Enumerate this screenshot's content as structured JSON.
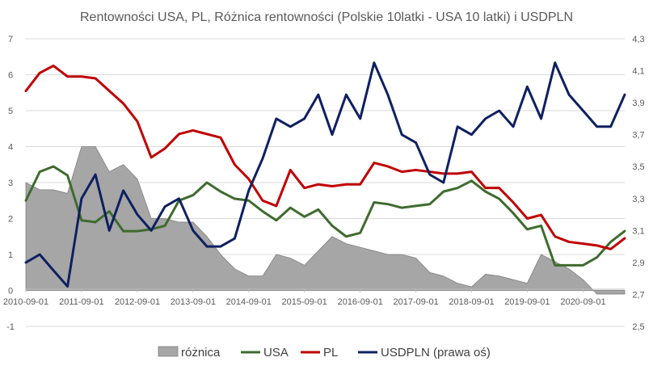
{
  "chart_data": {
    "type": "line",
    "title": "Rentowności USA, PL, Różnica rentowności (Polskie 10latki - USA 10 latki) i USDPLN",
    "x_tick_labels": [
      "2010-09-01",
      "2011-09-01",
      "2012-09-01",
      "2013-09-01",
      "2014-09-01",
      "2015-09-01",
      "2016-09-01",
      "2017-09-01",
      "2018-09-01",
      "2019-09-01",
      "2020-09-01"
    ],
    "x_start": "2010-09-01",
    "x_end": "2021-06-01",
    "y_left": {
      "min": -1,
      "max": 7,
      "ticks": [
        "-1",
        "0",
        "1",
        "2",
        "3",
        "4",
        "5",
        "6",
        "7"
      ]
    },
    "y_right": {
      "min": 2.5,
      "max": 4.3,
      "ticks": [
        "2,5",
        "2,7",
        "2,9",
        "3,1",
        "3,3",
        "3,5",
        "3,7",
        "3,9",
        "4,1",
        "4,3"
      ]
    },
    "legend_position": "bottom",
    "grid": true,
    "series": [
      {
        "name": "różnica",
        "kind": "area",
        "axis": "left",
        "color": "#a6a6a6",
        "x": [
          "2010-09-01",
          "2010-12-01",
          "2011-03-01",
          "2011-06-01",
          "2011-09-01",
          "2011-12-01",
          "2012-03-01",
          "2012-06-01",
          "2012-09-01",
          "2012-12-01",
          "2013-03-01",
          "2013-06-01",
          "2013-09-01",
          "2013-12-01",
          "2014-03-01",
          "2014-06-01",
          "2014-09-01",
          "2014-12-01",
          "2015-03-01",
          "2015-06-01",
          "2015-09-01",
          "2015-12-01",
          "2016-03-01",
          "2016-06-01",
          "2016-09-01",
          "2016-12-01",
          "2017-03-01",
          "2017-06-01",
          "2017-09-01",
          "2017-12-01",
          "2018-03-01",
          "2018-06-01",
          "2018-09-01",
          "2018-12-01",
          "2019-03-01",
          "2019-06-01",
          "2019-09-01",
          "2019-12-01",
          "2020-03-01",
          "2020-06-01",
          "2020-09-01",
          "2020-12-01",
          "2021-03-01",
          "2021-06-01"
        ],
        "values": [
          3.0,
          2.8,
          2.8,
          2.7,
          4.0,
          4.0,
          3.3,
          3.5,
          3.1,
          2.0,
          2.0,
          1.9,
          1.9,
          1.5,
          1.0,
          0.6,
          0.4,
          0.4,
          1.0,
          0.9,
          0.7,
          1.1,
          1.5,
          1.3,
          1.2,
          1.1,
          1.0,
          1.0,
          0.9,
          0.5,
          0.4,
          0.2,
          0.1,
          0.45,
          0.4,
          0.3,
          0.2,
          1.0,
          0.8,
          0.6,
          0.3,
          -0.1,
          -0.1,
          -0.1
        ]
      },
      {
        "name": "USA",
        "kind": "line",
        "axis": "left",
        "color": "#3e6b2e",
        "x": [
          "2010-09-01",
          "2010-12-01",
          "2011-03-01",
          "2011-06-01",
          "2011-09-01",
          "2011-12-01",
          "2012-03-01",
          "2012-06-01",
          "2012-09-01",
          "2012-12-01",
          "2013-03-01",
          "2013-06-01",
          "2013-09-01",
          "2013-12-01",
          "2014-03-01",
          "2014-06-01",
          "2014-09-01",
          "2014-12-01",
          "2015-03-01",
          "2015-06-01",
          "2015-09-01",
          "2015-12-01",
          "2016-03-01",
          "2016-06-01",
          "2016-09-01",
          "2016-12-01",
          "2017-03-01",
          "2017-06-01",
          "2017-09-01",
          "2017-12-01",
          "2018-03-01",
          "2018-06-01",
          "2018-09-01",
          "2018-12-01",
          "2019-03-01",
          "2019-06-01",
          "2019-09-01",
          "2019-12-01",
          "2020-03-01",
          "2020-06-01",
          "2020-09-01",
          "2020-12-01",
          "2021-03-01",
          "2021-06-01"
        ],
        "values": [
          2.5,
          3.3,
          3.45,
          3.2,
          1.95,
          1.9,
          2.2,
          1.65,
          1.65,
          1.7,
          1.8,
          2.5,
          2.65,
          3.0,
          2.75,
          2.55,
          2.5,
          2.2,
          1.95,
          2.3,
          2.05,
          2.25,
          1.8,
          1.5,
          1.6,
          2.45,
          2.4,
          2.3,
          2.35,
          2.4,
          2.75,
          2.85,
          3.05,
          2.75,
          2.55,
          2.15,
          1.7,
          1.8,
          0.7,
          0.7,
          0.7,
          0.92,
          1.35,
          1.65
        ]
      },
      {
        "name": "PL",
        "kind": "line",
        "axis": "left",
        "color": "#c00000",
        "x": [
          "2010-09-01",
          "2010-12-01",
          "2011-03-01",
          "2011-06-01",
          "2011-09-01",
          "2011-12-01",
          "2012-03-01",
          "2012-06-01",
          "2012-09-01",
          "2012-12-01",
          "2013-03-01",
          "2013-06-01",
          "2013-09-01",
          "2013-12-01",
          "2014-03-01",
          "2014-06-01",
          "2014-09-01",
          "2014-12-01",
          "2015-03-01",
          "2015-06-01",
          "2015-09-01",
          "2015-12-01",
          "2016-03-01",
          "2016-06-01",
          "2016-09-01",
          "2016-12-01",
          "2017-03-01",
          "2017-06-01",
          "2017-09-01",
          "2017-12-01",
          "2018-03-01",
          "2018-06-01",
          "2018-09-01",
          "2018-12-01",
          "2019-03-01",
          "2019-06-01",
          "2019-09-01",
          "2019-12-01",
          "2020-03-01",
          "2020-06-01",
          "2020-09-01",
          "2020-12-01",
          "2021-03-01",
          "2021-06-01"
        ],
        "values": [
          5.55,
          6.05,
          6.25,
          5.95,
          5.95,
          5.9,
          5.55,
          5.2,
          4.7,
          3.7,
          3.95,
          4.35,
          4.45,
          4.35,
          4.25,
          3.5,
          3.1,
          2.5,
          2.35,
          3.35,
          2.85,
          2.95,
          2.9,
          2.95,
          2.95,
          3.55,
          3.45,
          3.3,
          3.35,
          3.3,
          3.25,
          3.25,
          3.3,
          2.85,
          2.85,
          2.45,
          2.0,
          2.1,
          1.5,
          1.35,
          1.3,
          1.25,
          1.15,
          1.45
        ]
      },
      {
        "name": "USDPLN (prawa oś)",
        "kind": "line",
        "axis": "right",
        "color": "#0e2060",
        "x": [
          "2010-09-01",
          "2010-12-01",
          "2011-03-01",
          "2011-06-01",
          "2011-09-01",
          "2011-12-01",
          "2012-03-01",
          "2012-06-01",
          "2012-09-01",
          "2012-12-01",
          "2013-03-01",
          "2013-06-01",
          "2013-09-01",
          "2013-12-01",
          "2014-03-01",
          "2014-06-01",
          "2014-09-01",
          "2014-12-01",
          "2015-03-01",
          "2015-06-01",
          "2015-09-01",
          "2015-12-01",
          "2016-03-01",
          "2016-06-01",
          "2016-09-01",
          "2016-12-01",
          "2017-03-01",
          "2017-06-01",
          "2017-09-01",
          "2017-12-01",
          "2018-03-01",
          "2018-06-01",
          "2018-09-01",
          "2018-12-01",
          "2019-03-01",
          "2019-06-01",
          "2019-09-01",
          "2019-12-01",
          "2020-03-01",
          "2020-06-01",
          "2020-09-01",
          "2020-12-01",
          "2021-03-01",
          "2021-06-01"
        ],
        "values": [
          2.9,
          2.95,
          2.85,
          2.75,
          3.3,
          3.45,
          3.1,
          3.35,
          3.2,
          3.1,
          3.25,
          3.3,
          3.1,
          3.0,
          3.0,
          3.05,
          3.35,
          3.55,
          3.8,
          3.75,
          3.8,
          3.95,
          3.7,
          3.95,
          3.8,
          4.15,
          3.95,
          3.7,
          3.65,
          3.45,
          3.4,
          3.75,
          3.7,
          3.8,
          3.85,
          3.75,
          4.0,
          3.8,
          4.15,
          3.95,
          3.85,
          3.75,
          3.75,
          3.95
        ]
      }
    ]
  }
}
